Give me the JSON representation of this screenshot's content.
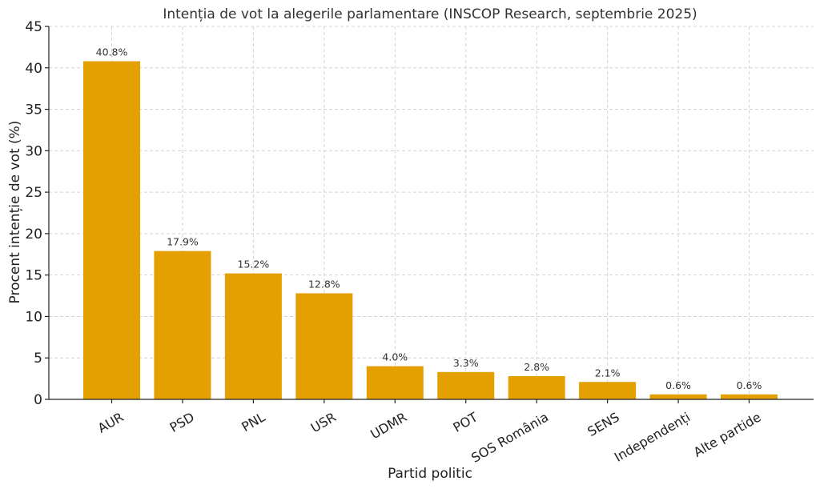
{
  "chart_data": {
    "type": "bar",
    "title": "Intenția de vot la alegerile parlamentare (INSCOP Research, septembrie 2025)",
    "xlabel": "Partid politic",
    "ylabel": "Procent intenție de vot (%)",
    "categories": [
      "AUR",
      "PSD",
      "PNL",
      "USR",
      "UDMR",
      "POT",
      "SOS România",
      "SENS",
      "Independenți",
      "Alte partide"
    ],
    "values": [
      40.8,
      17.9,
      15.2,
      12.8,
      4.0,
      3.3,
      2.8,
      2.1,
      0.6,
      0.6
    ],
    "value_labels": [
      "40.8%",
      "17.9%",
      "15.2%",
      "12.8%",
      "4.0%",
      "3.3%",
      "2.8%",
      "2.1%",
      "0.6%",
      "0.6%"
    ],
    "ylim": [
      0,
      45
    ],
    "yticks": [
      0,
      5,
      10,
      15,
      20,
      25,
      30,
      35,
      40,
      45
    ],
    "grid": true,
    "bar_color": "#E3A000"
  }
}
